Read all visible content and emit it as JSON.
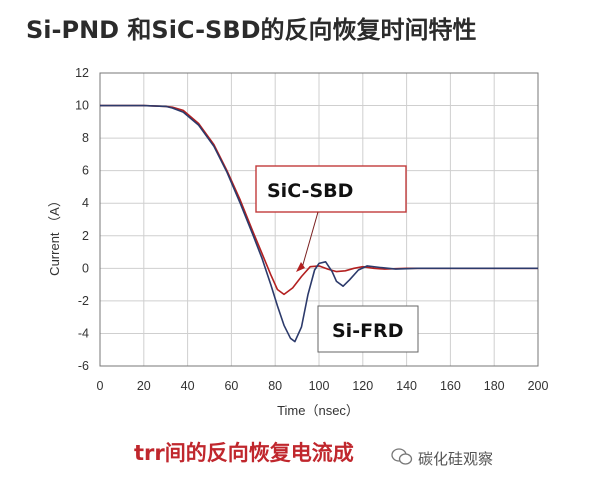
{
  "title": "Si-PND 和SiC-SBD的反向恢复时间特性",
  "caption": "trr间的反向恢复电流成",
  "watermark": "碳化硅观察",
  "chart_data": {
    "type": "line",
    "xlabel": "Time（nsec）",
    "ylabel": "Current （A）",
    "xlim": [
      0,
      200
    ],
    "ylim": [
      -6,
      12
    ],
    "xticks": [
      0,
      20,
      40,
      60,
      80,
      100,
      120,
      140,
      160,
      180,
      200
    ],
    "yticks": [
      -6,
      -4,
      -2,
      0,
      2,
      4,
      6,
      8,
      10,
      12
    ],
    "grid": true,
    "annotations": [
      {
        "text": "SiC-SBD",
        "x": 90,
        "y": 5
      },
      {
        "text": "Si-FRD",
        "x": 96,
        "y": -3.9
      }
    ],
    "series": [
      {
        "name": "SiC-SBD",
        "color": "#b32020",
        "x": [
          0,
          10,
          20,
          30,
          33,
          38,
          45,
          52,
          58,
          64,
          70,
          74,
          78,
          81,
          84,
          88,
          92,
          96,
          100,
          104,
          108,
          112,
          116,
          120,
          125,
          130,
          140,
          160,
          180,
          200
        ],
        "y": [
          10,
          10,
          10,
          9.95,
          9.9,
          9.7,
          8.9,
          7.6,
          6.0,
          4.2,
          2.2,
          0.9,
          -0.4,
          -1.3,
          -1.6,
          -1.2,
          -0.5,
          0.1,
          0.15,
          -0.05,
          -0.2,
          -0.15,
          0.0,
          0.1,
          0.0,
          -0.05,
          0.0,
          0.0,
          0.0,
          0.0
        ]
      },
      {
        "name": "Si-FRD",
        "color": "#2c3a6b",
        "x": [
          0,
          10,
          20,
          30,
          33,
          38,
          45,
          52,
          58,
          64,
          70,
          74,
          78,
          81,
          84,
          87,
          89,
          92,
          95,
          98,
          100,
          103,
          106,
          108,
          111,
          114,
          118,
          122,
          128,
          135,
          145,
          160,
          180,
          200
        ],
        "y": [
          10,
          10,
          10,
          9.95,
          9.85,
          9.6,
          8.8,
          7.5,
          5.9,
          4.0,
          2.0,
          0.6,
          -1.0,
          -2.3,
          -3.5,
          -4.3,
          -4.5,
          -3.6,
          -1.6,
          -0.1,
          0.3,
          0.4,
          -0.2,
          -0.8,
          -1.1,
          -0.7,
          -0.1,
          0.15,
          0.05,
          -0.05,
          0.0,
          0.0,
          0.0,
          0.0
        ]
      }
    ]
  }
}
